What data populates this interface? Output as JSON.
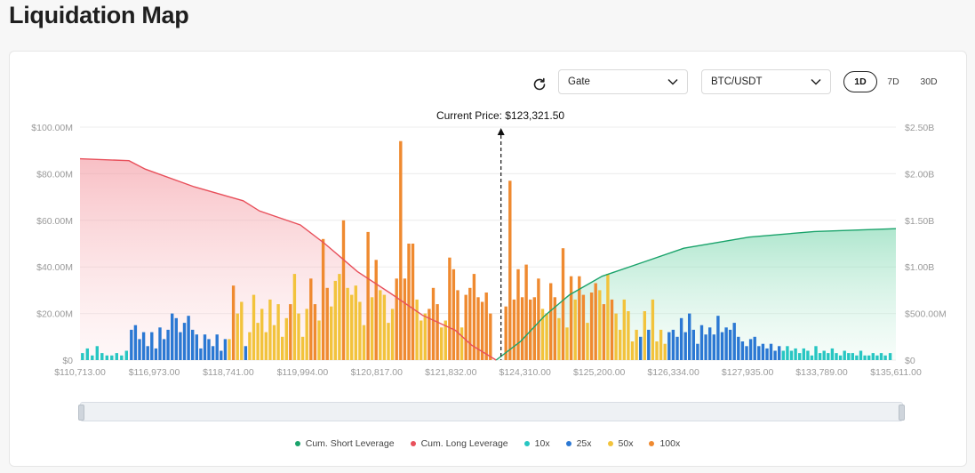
{
  "page": {
    "title": "Liquidation Map"
  },
  "controls": {
    "exchange": "Gate",
    "pair": "BTC/USDT",
    "ranges": [
      "1D",
      "7D",
      "30D"
    ],
    "active_range": "1D"
  },
  "colors": {
    "short": "#1aa36b",
    "long": "#e8505b",
    "x10": "#27c6c2",
    "x25": "#2b78d3",
    "x50": "#f2c33c",
    "x100": "#ef8a30"
  },
  "chart_data": {
    "type": "bar",
    "current_price_label": "Current Price: $123,321.50",
    "x_range": [
      110713,
      135611
    ],
    "x_tick_labels": [
      "$110,713.00",
      "$116,973.00",
      "$118,741.00",
      "$119,994.00",
      "$120,817.00",
      "$121,832.00",
      "$124,310.00",
      "$125,200.00",
      "$126,334.00",
      "$127,935.00",
      "$133,789.00",
      "$135,611.00"
    ],
    "current_price": 123321.5,
    "y_left": {
      "ticks": [
        "$0",
        "$20.00M",
        "$40.00M",
        "$60.00M",
        "$80.00M",
        "$100.00M"
      ],
      "max": 100
    },
    "y_right": {
      "ticks": [
        "$0",
        "$500.00M",
        "$1.00B",
        "$1.50B",
        "$2.00B",
        "$2.50B"
      ],
      "max": 2.5
    },
    "grid": true,
    "legend_position": "bottom",
    "legend": [
      "Cum. Short Leverage",
      "Cum. Long Leverage",
      "10x",
      "25x",
      "50x",
      "100x"
    ],
    "long_curve": [
      [
        0,
        2.16
      ],
      [
        0.06,
        2.14
      ],
      [
        0.08,
        2.05
      ],
      [
        0.14,
        1.86
      ],
      [
        0.2,
        1.71
      ],
      [
        0.22,
        1.6
      ],
      [
        0.27,
        1.45
      ],
      [
        0.3,
        1.25
      ],
      [
        0.34,
        0.95
      ],
      [
        0.38,
        0.72
      ],
      [
        0.42,
        0.48
      ],
      [
        0.46,
        0.32
      ],
      [
        0.48,
        0.16
      ],
      [
        0.51,
        0.0
      ]
    ],
    "short_curve": [
      [
        0.51,
        0.0
      ],
      [
        0.54,
        0.2
      ],
      [
        0.57,
        0.48
      ],
      [
        0.6,
        0.7
      ],
      [
        0.64,
        0.9
      ],
      [
        0.69,
        1.05
      ],
      [
        0.74,
        1.2
      ],
      [
        0.82,
        1.32
      ],
      [
        0.9,
        1.38
      ],
      [
        1.0,
        1.41
      ]
    ],
    "bars": [
      [
        0.003,
        3,
        "10x"
      ],
      [
        0.009,
        5,
        "10x"
      ],
      [
        0.015,
        2,
        "10x"
      ],
      [
        0.021,
        6,
        "10x"
      ],
      [
        0.027,
        3,
        "10x"
      ],
      [
        0.033,
        2,
        "10x"
      ],
      [
        0.039,
        2,
        "10x"
      ],
      [
        0.045,
        3,
        "10x"
      ],
      [
        0.051,
        2,
        "10x"
      ],
      [
        0.057,
        4,
        "10x"
      ],
      [
        0.063,
        13,
        "25x"
      ],
      [
        0.068,
        15,
        "25x"
      ],
      [
        0.073,
        9,
        "25x"
      ],
      [
        0.078,
        12,
        "25x"
      ],
      [
        0.083,
        6,
        "25x"
      ],
      [
        0.088,
        12,
        "25x"
      ],
      [
        0.093,
        5,
        "25x"
      ],
      [
        0.098,
        14,
        "25x"
      ],
      [
        0.103,
        9,
        "25x"
      ],
      [
        0.108,
        13,
        "25x"
      ],
      [
        0.113,
        20,
        "25x"
      ],
      [
        0.118,
        18,
        "25x"
      ],
      [
        0.123,
        12,
        "25x"
      ],
      [
        0.128,
        16,
        "25x"
      ],
      [
        0.133,
        19,
        "25x"
      ],
      [
        0.138,
        13,
        "25x"
      ],
      [
        0.143,
        11,
        "25x"
      ],
      [
        0.148,
        5,
        "25x"
      ],
      [
        0.153,
        11,
        "25x"
      ],
      [
        0.158,
        9,
        "25x"
      ],
      [
        0.163,
        6,
        "25x"
      ],
      [
        0.168,
        11,
        "25x"
      ],
      [
        0.173,
        4,
        "25x"
      ],
      [
        0.178,
        9,
        "25x"
      ],
      [
        0.183,
        9,
        "50x"
      ],
      [
        0.188,
        32,
        "100x"
      ],
      [
        0.193,
        20,
        "50x"
      ],
      [
        0.198,
        25,
        "50x"
      ],
      [
        0.203,
        6,
        "25x"
      ],
      [
        0.208,
        12,
        "50x"
      ],
      [
        0.213,
        28,
        "50x"
      ],
      [
        0.218,
        16,
        "50x"
      ],
      [
        0.223,
        22,
        "50x"
      ],
      [
        0.228,
        12,
        "50x"
      ],
      [
        0.233,
        26,
        "50x"
      ],
      [
        0.238,
        15,
        "50x"
      ],
      [
        0.243,
        24,
        "50x"
      ],
      [
        0.248,
        10,
        "50x"
      ],
      [
        0.253,
        18,
        "50x"
      ],
      [
        0.258,
        24,
        "100x"
      ],
      [
        0.263,
        37,
        "50x"
      ],
      [
        0.268,
        20,
        "50x"
      ],
      [
        0.273,
        10,
        "50x"
      ],
      [
        0.278,
        22,
        "50x"
      ],
      [
        0.283,
        35,
        "100x"
      ],
      [
        0.288,
        24,
        "100x"
      ],
      [
        0.293,
        17,
        "50x"
      ],
      [
        0.298,
        52,
        "100x"
      ],
      [
        0.303,
        31,
        "100x"
      ],
      [
        0.308,
        23,
        "50x"
      ],
      [
        0.313,
        34,
        "50x"
      ],
      [
        0.318,
        37,
        "50x"
      ],
      [
        0.323,
        60,
        "100x"
      ],
      [
        0.328,
        31,
        "50x"
      ],
      [
        0.333,
        28,
        "50x"
      ],
      [
        0.338,
        32,
        "50x"
      ],
      [
        0.343,
        25,
        "50x"
      ],
      [
        0.348,
        15,
        "50x"
      ],
      [
        0.353,
        55,
        "100x"
      ],
      [
        0.358,
        27,
        "50x"
      ],
      [
        0.363,
        43,
        "100x"
      ],
      [
        0.368,
        30,
        "50x"
      ],
      [
        0.373,
        28,
        "50x"
      ],
      [
        0.378,
        16,
        "50x"
      ],
      [
        0.383,
        22,
        "50x"
      ],
      [
        0.388,
        35,
        "100x"
      ],
      [
        0.393,
        94,
        "100x"
      ],
      [
        0.398,
        35,
        "100x"
      ],
      [
        0.403,
        50,
        "100x"
      ],
      [
        0.408,
        50,
        "100x"
      ],
      [
        0.413,
        26,
        "50x"
      ],
      [
        0.418,
        17,
        "50x"
      ],
      [
        0.423,
        20,
        "50x"
      ],
      [
        0.428,
        22,
        "100x"
      ],
      [
        0.433,
        31,
        "100x"
      ],
      [
        0.438,
        24,
        "100x"
      ],
      [
        0.443,
        14,
        "50x"
      ],
      [
        0.448,
        17,
        "50x"
      ],
      [
        0.453,
        44,
        "100x"
      ],
      [
        0.458,
        39,
        "100x"
      ],
      [
        0.463,
        30,
        "100x"
      ],
      [
        0.468,
        14,
        "50x"
      ],
      [
        0.473,
        28,
        "100x"
      ],
      [
        0.478,
        31,
        "100x"
      ],
      [
        0.483,
        37,
        "100x"
      ],
      [
        0.488,
        27,
        "100x"
      ],
      [
        0.493,
        25,
        "100x"
      ],
      [
        0.498,
        29,
        "100x"
      ],
      [
        0.503,
        20,
        "100x"
      ],
      [
        0.522,
        23,
        "100x"
      ],
      [
        0.527,
        77,
        "100x"
      ],
      [
        0.532,
        26,
        "100x"
      ],
      [
        0.537,
        39,
        "100x"
      ],
      [
        0.542,
        27,
        "100x"
      ],
      [
        0.547,
        41,
        "100x"
      ],
      [
        0.552,
        26,
        "100x"
      ],
      [
        0.557,
        27,
        "100x"
      ],
      [
        0.562,
        35,
        "100x"
      ],
      [
        0.567,
        22,
        "50x"
      ],
      [
        0.572,
        20,
        "50x"
      ],
      [
        0.577,
        33,
        "100x"
      ],
      [
        0.582,
        27,
        "100x"
      ],
      [
        0.587,
        18,
        "50x"
      ],
      [
        0.592,
        48,
        "100x"
      ],
      [
        0.597,
        14,
        "50x"
      ],
      [
        0.602,
        36,
        "100x"
      ],
      [
        0.607,
        26,
        "50x"
      ],
      [
        0.612,
        36,
        "100x"
      ],
      [
        0.617,
        28,
        "100x"
      ],
      [
        0.622,
        16,
        "50x"
      ],
      [
        0.627,
        29,
        "100x"
      ],
      [
        0.632,
        33,
        "100x"
      ],
      [
        0.637,
        30,
        "50x"
      ],
      [
        0.642,
        24,
        "100x"
      ],
      [
        0.647,
        37,
        "50x"
      ],
      [
        0.652,
        26,
        "100x"
      ],
      [
        0.657,
        20,
        "50x"
      ],
      [
        0.662,
        13,
        "50x"
      ],
      [
        0.667,
        26,
        "50x"
      ],
      [
        0.672,
        21,
        "50x"
      ],
      [
        0.677,
        8,
        "50x"
      ],
      [
        0.682,
        13,
        "50x"
      ],
      [
        0.687,
        10,
        "25x"
      ],
      [
        0.692,
        21,
        "50x"
      ],
      [
        0.697,
        13,
        "25x"
      ],
      [
        0.702,
        26,
        "50x"
      ],
      [
        0.707,
        8,
        "50x"
      ],
      [
        0.712,
        13,
        "50x"
      ],
      [
        0.717,
        7,
        "50x"
      ],
      [
        0.722,
        12,
        "25x"
      ],
      [
        0.727,
        13,
        "25x"
      ],
      [
        0.732,
        10,
        "25x"
      ],
      [
        0.737,
        18,
        "25x"
      ],
      [
        0.742,
        12,
        "25x"
      ],
      [
        0.747,
        20,
        "25x"
      ],
      [
        0.752,
        13,
        "25x"
      ],
      [
        0.757,
        7,
        "25x"
      ],
      [
        0.762,
        15,
        "25x"
      ],
      [
        0.767,
        11,
        "25x"
      ],
      [
        0.772,
        14,
        "25x"
      ],
      [
        0.777,
        11,
        "25x"
      ],
      [
        0.782,
        19,
        "25x"
      ],
      [
        0.787,
        12,
        "25x"
      ],
      [
        0.792,
        14,
        "25x"
      ],
      [
        0.797,
        13,
        "25x"
      ],
      [
        0.802,
        16,
        "25x"
      ],
      [
        0.807,
        10,
        "25x"
      ],
      [
        0.812,
        8,
        "25x"
      ],
      [
        0.817,
        6,
        "25x"
      ],
      [
        0.822,
        9,
        "25x"
      ],
      [
        0.827,
        10,
        "25x"
      ],
      [
        0.832,
        6,
        "25x"
      ],
      [
        0.837,
        7,
        "25x"
      ],
      [
        0.842,
        5,
        "25x"
      ],
      [
        0.847,
        7,
        "25x"
      ],
      [
        0.852,
        4,
        "25x"
      ],
      [
        0.857,
        6,
        "25x"
      ],
      [
        0.862,
        4,
        "10x"
      ],
      [
        0.867,
        6,
        "10x"
      ],
      [
        0.872,
        4,
        "10x"
      ],
      [
        0.877,
        5,
        "10x"
      ],
      [
        0.882,
        3,
        "10x"
      ],
      [
        0.887,
        5,
        "10x"
      ],
      [
        0.892,
        4,
        "10x"
      ],
      [
        0.897,
        2,
        "10x"
      ],
      [
        0.902,
        6,
        "10x"
      ],
      [
        0.907,
        3,
        "10x"
      ],
      [
        0.912,
        4,
        "10x"
      ],
      [
        0.917,
        3,
        "10x"
      ],
      [
        0.922,
        5,
        "10x"
      ],
      [
        0.927,
        3,
        "10x"
      ],
      [
        0.932,
        2,
        "10x"
      ],
      [
        0.937,
        4,
        "10x"
      ],
      [
        0.942,
        3,
        "10x"
      ],
      [
        0.947,
        3,
        "10x"
      ],
      [
        0.952,
        2,
        "10x"
      ],
      [
        0.957,
        4,
        "10x"
      ],
      [
        0.962,
        2,
        "10x"
      ],
      [
        0.967,
        2,
        "10x"
      ],
      [
        0.972,
        3,
        "10x"
      ],
      [
        0.977,
        2,
        "10x"
      ],
      [
        0.982,
        3,
        "10x"
      ],
      [
        0.987,
        2,
        "10x"
      ],
      [
        0.993,
        3,
        "10x"
      ]
    ]
  }
}
